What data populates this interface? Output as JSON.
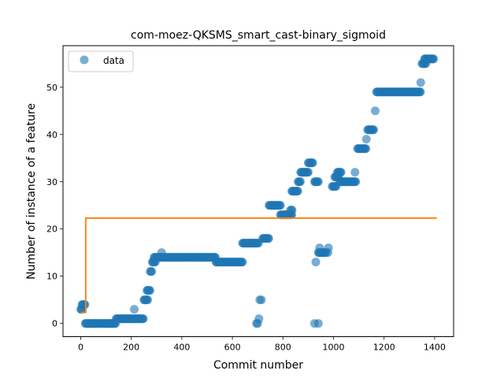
{
  "chart_data": {
    "type": "scatter",
    "title": "com-moez-QKSMS_smart_cast-binary_sigmoid",
    "xlabel": "Commit number",
    "ylabel": "Number of instance of a feature",
    "xlim": [
      -70,
      1475
    ],
    "ylim": [
      -2.8,
      58.8
    ],
    "xticks": [
      0,
      200,
      400,
      600,
      800,
      1000,
      1200,
      1400
    ],
    "yticks": [
      0,
      10,
      20,
      30,
      40,
      50
    ],
    "grid": false,
    "legend": {
      "placement": "top-left",
      "entries": [
        "data"
      ]
    },
    "colors": {
      "data": "#1f77b4",
      "fit": "#ff7f0e"
    },
    "series": [
      {
        "name": "data",
        "kind": "scatter",
        "segments": [
          {
            "x0": 0,
            "x1": 8,
            "y": 3
          },
          {
            "x0": 5,
            "x1": 18,
            "y": 4
          },
          {
            "x0": 18,
            "x1": 140,
            "y": 0
          },
          {
            "x0": 140,
            "x1": 248,
            "y": 1
          },
          {
            "x0": 250,
            "x1": 265,
            "y": 5
          },
          {
            "x0": 262,
            "x1": 275,
            "y": 7
          },
          {
            "x0": 275,
            "x1": 283,
            "y": 11
          },
          {
            "x0": 283,
            "x1": 295,
            "y": 13
          },
          {
            "x0": 290,
            "x1": 535,
            "y": 14
          },
          {
            "x0": 535,
            "x1": 640,
            "y": 13
          },
          {
            "x0": 640,
            "x1": 705,
            "y": 17
          },
          {
            "x0": 720,
            "x1": 745,
            "y": 18
          },
          {
            "x0": 745,
            "x1": 790,
            "y": 25
          },
          {
            "x0": 790,
            "x1": 835,
            "y": 23
          },
          {
            "x0": 830,
            "x1": 838,
            "y": 24
          },
          {
            "x0": 835,
            "x1": 860,
            "y": 28
          },
          {
            "x0": 860,
            "x1": 870,
            "y": 30
          },
          {
            "x0": 870,
            "x1": 900,
            "y": 32
          },
          {
            "x0": 900,
            "x1": 920,
            "y": 34
          },
          {
            "x0": 925,
            "x1": 940,
            "y": 30
          },
          {
            "x0": 940,
            "x1": 970,
            "y": 15
          },
          {
            "x0": 995,
            "x1": 1010,
            "y": 29
          },
          {
            "x0": 1005,
            "x1": 1020,
            "y": 31
          },
          {
            "x0": 1015,
            "x1": 1030,
            "y": 32
          },
          {
            "x0": 1025,
            "x1": 1090,
            "y": 30
          },
          {
            "x0": 1095,
            "x1": 1130,
            "y": 37
          },
          {
            "x0": 1135,
            "x1": 1160,
            "y": 41
          },
          {
            "x0": 1170,
            "x1": 1345,
            "y": 49
          },
          {
            "x0": 1350,
            "x1": 1365,
            "y": 55
          },
          {
            "x0": 1360,
            "x1": 1398,
            "y": 56
          }
        ],
        "points": [
          {
            "x": 212,
            "y": 3
          },
          {
            "x": 695,
            "y": 0
          },
          {
            "x": 700,
            "y": 0
          },
          {
            "x": 705,
            "y": 1
          },
          {
            "x": 708,
            "y": 5
          },
          {
            "x": 715,
            "y": 5
          },
          {
            "x": 320,
            "y": 15
          },
          {
            "x": 810,
            "y": 23
          },
          {
            "x": 930,
            "y": 13
          },
          {
            "x": 925,
            "y": 0
          },
          {
            "x": 940,
            "y": 0
          },
          {
            "x": 945,
            "y": 16
          },
          {
            "x": 980,
            "y": 16
          },
          {
            "x": 978,
            "y": 15
          },
          {
            "x": 1085,
            "y": 32
          },
          {
            "x": 1130,
            "y": 39
          },
          {
            "x": 1165,
            "y": 45
          },
          {
            "x": 1345,
            "y": 51
          }
        ]
      },
      {
        "name": "",
        "kind": "line",
        "x": [
          0,
          20,
          20,
          1408
        ],
        "y": [
          2.3,
          2.3,
          22.3,
          22.3
        ]
      }
    ]
  }
}
